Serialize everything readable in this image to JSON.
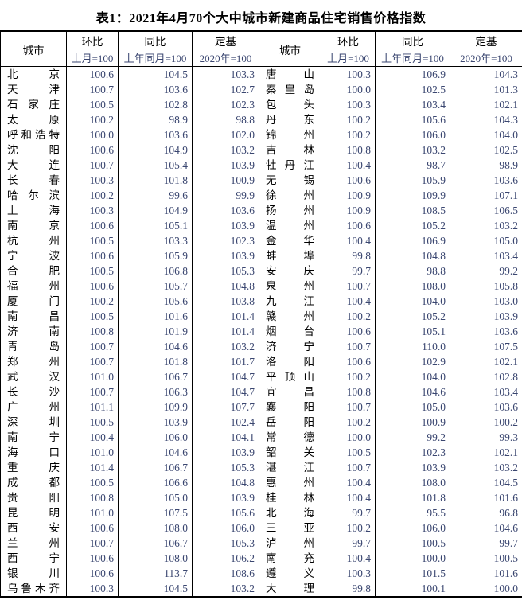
{
  "title": "表1：2021年4月70个大中城市新建商品住宅销售价格指数",
  "colors": {
    "ink": "#000000",
    "number_ink": "#3a4670",
    "border": "#000000",
    "background": "#ffffff"
  },
  "table": {
    "header": {
      "city": "城市",
      "columns": [
        {
          "label": "环比",
          "sub": "上月=100"
        },
        {
          "label": "同比",
          "sub": "上年同月=100"
        },
        {
          "label": "定基",
          "sub": "2020年=100"
        }
      ]
    },
    "left_rows": [
      {
        "city": "北京",
        "mom": "100.6",
        "yoy": "104.5",
        "base": "103.3"
      },
      {
        "city": "天津",
        "mom": "100.7",
        "yoy": "103.6",
        "base": "102.7"
      },
      {
        "city": "石家庄",
        "mom": "100.5",
        "yoy": "102.8",
        "base": "102.3"
      },
      {
        "city": "太原",
        "mom": "100.2",
        "yoy": "98.9",
        "base": "98.8"
      },
      {
        "city": "呼和浩特",
        "mom": "100.0",
        "yoy": "103.6",
        "base": "102.0"
      },
      {
        "city": "沈阳",
        "mom": "100.6",
        "yoy": "104.9",
        "base": "103.2"
      },
      {
        "city": "大连",
        "mom": "100.7",
        "yoy": "105.4",
        "base": "103.9"
      },
      {
        "city": "长春",
        "mom": "100.3",
        "yoy": "101.8",
        "base": "100.9"
      },
      {
        "city": "哈尔滨",
        "mom": "100.2",
        "yoy": "99.6",
        "base": "99.9"
      },
      {
        "city": "上海",
        "mom": "100.3",
        "yoy": "104.9",
        "base": "103.6"
      },
      {
        "city": "南京",
        "mom": "100.6",
        "yoy": "105.1",
        "base": "103.9"
      },
      {
        "city": "杭州",
        "mom": "100.5",
        "yoy": "103.3",
        "base": "102.3"
      },
      {
        "city": "宁波",
        "mom": "100.6",
        "yoy": "105.9",
        "base": "103.9"
      },
      {
        "city": "合肥",
        "mom": "100.5",
        "yoy": "106.8",
        "base": "105.3"
      },
      {
        "city": "福州",
        "mom": "100.6",
        "yoy": "105.7",
        "base": "104.8"
      },
      {
        "city": "厦门",
        "mom": "100.2",
        "yoy": "105.6",
        "base": "103.8"
      },
      {
        "city": "南昌",
        "mom": "100.5",
        "yoy": "101.6",
        "base": "101.4"
      },
      {
        "city": "济南",
        "mom": "100.8",
        "yoy": "101.9",
        "base": "101.4"
      },
      {
        "city": "青岛",
        "mom": "100.7",
        "yoy": "104.6",
        "base": "103.2"
      },
      {
        "city": "郑州",
        "mom": "100.7",
        "yoy": "101.8",
        "base": "101.7"
      },
      {
        "city": "武汉",
        "mom": "101.0",
        "yoy": "106.7",
        "base": "104.7"
      },
      {
        "city": "长沙",
        "mom": "100.7",
        "yoy": "106.3",
        "base": "104.7"
      },
      {
        "city": "广州",
        "mom": "101.1",
        "yoy": "109.9",
        "base": "107.7"
      },
      {
        "city": "深圳",
        "mom": "100.5",
        "yoy": "103.9",
        "base": "102.4"
      },
      {
        "city": "南宁",
        "mom": "100.4",
        "yoy": "106.0",
        "base": "104.1"
      },
      {
        "city": "海口",
        "mom": "101.0",
        "yoy": "104.6",
        "base": "103.9"
      },
      {
        "city": "重庆",
        "mom": "101.4",
        "yoy": "106.7",
        "base": "105.3"
      },
      {
        "city": "成都",
        "mom": "100.5",
        "yoy": "106.6",
        "base": "104.8"
      },
      {
        "city": "贵阳",
        "mom": "100.8",
        "yoy": "105.0",
        "base": "103.9"
      },
      {
        "city": "昆明",
        "mom": "101.0",
        "yoy": "107.5",
        "base": "105.6"
      },
      {
        "city": "西安",
        "mom": "100.6",
        "yoy": "108.0",
        "base": "106.0"
      },
      {
        "city": "兰州",
        "mom": "100.7",
        "yoy": "106.7",
        "base": "105.3"
      },
      {
        "city": "西宁",
        "mom": "100.6",
        "yoy": "108.0",
        "base": "106.2"
      },
      {
        "city": "银川",
        "mom": "100.6",
        "yoy": "113.7",
        "base": "108.6"
      },
      {
        "city": "乌鲁木齐",
        "mom": "100.3",
        "yoy": "104.5",
        "base": "103.2"
      }
    ],
    "right_rows": [
      {
        "city": "唐山",
        "mom": "100.3",
        "yoy": "106.9",
        "base": "104.3"
      },
      {
        "city": "秦皇岛",
        "mom": "100.0",
        "yoy": "102.5",
        "base": "101.3"
      },
      {
        "city": "包头",
        "mom": "100.3",
        "yoy": "103.4",
        "base": "102.1"
      },
      {
        "city": "丹东",
        "mom": "100.2",
        "yoy": "105.6",
        "base": "104.3"
      },
      {
        "city": "锦州",
        "mom": "100.2",
        "yoy": "106.0",
        "base": "104.0"
      },
      {
        "city": "吉林",
        "mom": "100.8",
        "yoy": "103.2",
        "base": "102.5"
      },
      {
        "city": "牡丹江",
        "mom": "100.4",
        "yoy": "98.7",
        "base": "98.9"
      },
      {
        "city": "无锡",
        "mom": "100.6",
        "yoy": "105.9",
        "base": "103.6"
      },
      {
        "city": "徐州",
        "mom": "100.9",
        "yoy": "109.9",
        "base": "107.1"
      },
      {
        "city": "扬州",
        "mom": "100.9",
        "yoy": "108.5",
        "base": "106.5"
      },
      {
        "city": "温州",
        "mom": "100.6",
        "yoy": "105.2",
        "base": "103.2"
      },
      {
        "city": "金华",
        "mom": "100.4",
        "yoy": "106.9",
        "base": "105.0"
      },
      {
        "city": "蚌埠",
        "mom": "99.8",
        "yoy": "104.8",
        "base": "103.4"
      },
      {
        "city": "安庆",
        "mom": "99.7",
        "yoy": "98.8",
        "base": "99.2"
      },
      {
        "city": "泉州",
        "mom": "100.7",
        "yoy": "108.0",
        "base": "105.8"
      },
      {
        "city": "九江",
        "mom": "100.4",
        "yoy": "104.0",
        "base": "103.0"
      },
      {
        "city": "赣州",
        "mom": "100.2",
        "yoy": "105.2",
        "base": "103.9"
      },
      {
        "city": "烟台",
        "mom": "100.6",
        "yoy": "105.1",
        "base": "103.6"
      },
      {
        "city": "济宁",
        "mom": "100.7",
        "yoy": "110.0",
        "base": "107.5"
      },
      {
        "city": "洛阳",
        "mom": "100.6",
        "yoy": "102.9",
        "base": "102.1"
      },
      {
        "city": "平顶山",
        "mom": "100.2",
        "yoy": "104.0",
        "base": "102.8"
      },
      {
        "city": "宜昌",
        "mom": "100.8",
        "yoy": "104.6",
        "base": "103.4"
      },
      {
        "city": "襄阳",
        "mom": "100.7",
        "yoy": "105.0",
        "base": "103.6"
      },
      {
        "city": "岳阳",
        "mom": "100.2",
        "yoy": "100.9",
        "base": "100.2"
      },
      {
        "city": "常德",
        "mom": "100.0",
        "yoy": "99.2",
        "base": "99.3"
      },
      {
        "city": "韶关",
        "mom": "100.5",
        "yoy": "102.3",
        "base": "102.1"
      },
      {
        "city": "湛江",
        "mom": "100.7",
        "yoy": "103.9",
        "base": "103.2"
      },
      {
        "city": "惠州",
        "mom": "100.4",
        "yoy": "108.0",
        "base": "104.5"
      },
      {
        "city": "桂林",
        "mom": "100.4",
        "yoy": "101.8",
        "base": "101.6"
      },
      {
        "city": "北海",
        "mom": "99.7",
        "yoy": "95.5",
        "base": "96.8"
      },
      {
        "city": "三亚",
        "mom": "100.2",
        "yoy": "106.0",
        "base": "104.6"
      },
      {
        "city": "泸州",
        "mom": "99.7",
        "yoy": "100.5",
        "base": "99.7"
      },
      {
        "city": "南充",
        "mom": "100.4",
        "yoy": "100.0",
        "base": "100.5"
      },
      {
        "city": "遵义",
        "mom": "100.3",
        "yoy": "101.5",
        "base": "101.6"
      },
      {
        "city": "大理",
        "mom": "99.8",
        "yoy": "100.1",
        "base": "100.0"
      }
    ]
  }
}
